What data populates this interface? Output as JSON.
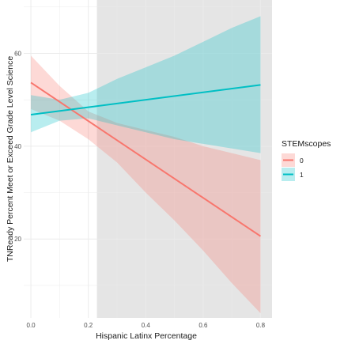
{
  "chart_data": {
    "type": "line",
    "xlabel": "Hispanic Latinx Percentage",
    "ylabel": "TNReady Percent Meet or Exceed Grade Level Science",
    "xlim": [
      -0.025,
      0.84
    ],
    "ylim": [
      3,
      71.5
    ],
    "x_ticks": [
      0.0,
      0.2,
      0.4,
      0.6,
      0.8
    ],
    "x_tick_labels": [
      "0.0",
      "0.2",
      "0.4",
      "0.6",
      "0.8"
    ],
    "y_ticks": [
      20,
      40,
      60
    ],
    "y_tick_labels": [
      "20",
      "40",
      "60"
    ],
    "grid": true,
    "shaded_region": {
      "x_start": 0.23,
      "x_end": 0.84,
      "color": "#e5e5e5"
    },
    "legend": {
      "title": "STEMscopes",
      "position": "right",
      "entries": [
        "0",
        "1"
      ]
    },
    "series": [
      {
        "name": "0",
        "color": "#f8766d",
        "ribbon_color": "#f8766d",
        "x": [
          0.0,
          0.8
        ],
        "y": [
          53.7,
          20.6
        ],
        "ci_x": [
          0.0,
          0.1,
          0.2,
          0.3,
          0.4,
          0.5,
          0.6,
          0.7,
          0.8
        ],
        "ci_lower": [
          48.0,
          45.5,
          41.5,
          36.5,
          30.0,
          24.0,
          17.5,
          10.5,
          4.0
        ],
        "ci_upper": [
          59.5,
          53.0,
          47.5,
          45.0,
          43.5,
          42.0,
          40.0,
          38.5,
          37.0
        ]
      },
      {
        "name": "1",
        "color": "#00bfc4",
        "ribbon_color": "#00bfc4",
        "x": [
          0.0,
          0.8
        ],
        "y": [
          46.8,
          53.2
        ],
        "ci_x": [
          0.0,
          0.1,
          0.2,
          0.3,
          0.4,
          0.5,
          0.6,
          0.7,
          0.8
        ],
        "ci_lower": [
          43.0,
          45.5,
          46.0,
          44.5,
          43.0,
          41.5,
          40.5,
          39.5,
          38.5
        ],
        "ci_upper": [
          51.0,
          50.0,
          51.5,
          54.5,
          57.0,
          59.5,
          62.5,
          65.5,
          68.0
        ]
      }
    ]
  }
}
